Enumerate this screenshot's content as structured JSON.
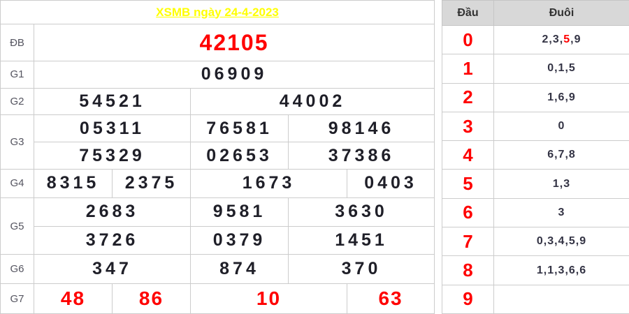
{
  "colors": {
    "header_bg": "#a84e5a",
    "title_text": "#ffff00",
    "accent_red": "#ff0000",
    "number_dark": "#1f1f28",
    "label_gray": "#555560",
    "summary_header_bg": "#d8d8d8",
    "border": "#cccccc"
  },
  "left_table": {
    "title": "XSMB ngày 24-4-2023",
    "rows": [
      {
        "id": "db",
        "label": "ĐB",
        "class": "special",
        "lines": [
          [
            {
              "t": "42105",
              "span": 5
            }
          ]
        ]
      },
      {
        "id": "g1",
        "label": "G1",
        "lines": [
          [
            {
              "t": "06909",
              "span": 5
            }
          ]
        ]
      },
      {
        "id": "g2",
        "label": "G2",
        "lines": [
          [
            {
              "t": "54521",
              "span": 2
            },
            {
              "t": "44002",
              "span": 3
            }
          ]
        ]
      },
      {
        "id": "g3",
        "label": "G3",
        "lines": [
          [
            {
              "t": "05311",
              "span": 2
            },
            {
              "t": "76581",
              "span": 1
            },
            {
              "t": "98146",
              "span": 2
            }
          ],
          [
            {
              "t": "75329",
              "span": 2
            },
            {
              "t": "02653",
              "span": 1
            },
            {
              "t": "37386",
              "span": 2
            }
          ]
        ]
      },
      {
        "id": "g4",
        "label": "G4",
        "lines": [
          [
            {
              "t": "8315",
              "span": 1
            },
            {
              "t": "2375",
              "span": 1
            },
            {
              "t": "1673",
              "span": 2
            },
            {
              "t": "0403",
              "span": 1
            }
          ]
        ]
      },
      {
        "id": "g5",
        "label": "G5",
        "lines": [
          [
            {
              "t": "2683",
              "span": 2
            },
            {
              "t": "9581",
              "span": 1
            },
            {
              "t": "3630",
              "span": 2
            }
          ],
          [
            {
              "t": "3726",
              "span": 2
            },
            {
              "t": "0379",
              "span": 1
            },
            {
              "t": "1451",
              "span": 2
            }
          ]
        ]
      },
      {
        "id": "g6",
        "label": "G6",
        "lines": [
          [
            {
              "t": "347",
              "span": 2
            },
            {
              "t": "874",
              "span": 1
            },
            {
              "t": "370",
              "span": 2
            }
          ]
        ]
      },
      {
        "id": "g7",
        "label": "G7",
        "class": "red",
        "lines": [
          [
            {
              "t": "48",
              "span": 1
            },
            {
              "t": "86",
              "span": 1
            },
            {
              "t": "10",
              "span": 2
            },
            {
              "t": "63",
              "span": 1
            }
          ]
        ]
      }
    ]
  },
  "summary_table": {
    "headers": {
      "dau": "Đầu",
      "duoi": "Đuôi"
    },
    "rows": [
      {
        "dau": "0",
        "duoi": [
          {
            "t": "2,3,"
          },
          {
            "t": "5",
            "red": true
          },
          {
            "t": ",9"
          }
        ]
      },
      {
        "dau": "1",
        "duoi": [
          {
            "t": "0,1,5"
          }
        ]
      },
      {
        "dau": "2",
        "duoi": [
          {
            "t": "1,6,9"
          }
        ]
      },
      {
        "dau": "3",
        "duoi": [
          {
            "t": "0"
          }
        ]
      },
      {
        "dau": "4",
        "duoi": [
          {
            "t": "6,7,8"
          }
        ]
      },
      {
        "dau": "5",
        "duoi": [
          {
            "t": "1,3"
          }
        ]
      },
      {
        "dau": "6",
        "duoi": [
          {
            "t": "3"
          }
        ]
      },
      {
        "dau": "7",
        "duoi": [
          {
            "t": "0,3,4,5,9"
          }
        ]
      },
      {
        "dau": "8",
        "duoi": [
          {
            "t": "1,1,3,6,6"
          }
        ]
      },
      {
        "dau": "9",
        "duoi": []
      }
    ]
  }
}
